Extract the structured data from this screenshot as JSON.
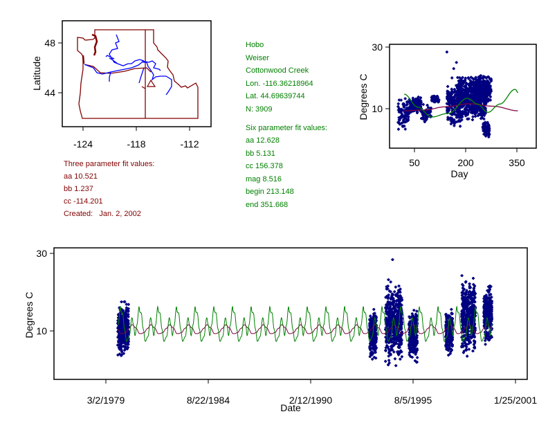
{
  "site": {
    "lines": [
      "Hobo",
      "Weiser",
      "Cottonwood Creek",
      "Lon. -116.36218964",
      "Lat. 44.69639744",
      "N: 3909"
    ],
    "six_title": "Six parameter fit values:",
    "six": [
      "aa 12.628",
      "bb 5.131",
      "cc 156.378",
      "mag 8.516",
      "begin 213.148",
      "end 351.668"
    ]
  },
  "three": {
    "title": "Three parameter fit values:",
    "lines": [
      "aa 10.521",
      "bb 1.237",
      "cc -114.201"
    ],
    "created": "Created:   Jan. 2, 2002"
  },
  "colors": {
    "points": "#000080",
    "three_fit": "#800040",
    "six_fit": "#008000",
    "map_border": "#800000",
    "rivers": "#0000ff"
  },
  "chart_data": [
    {
      "type": "map",
      "ylabel": "Latitude",
      "xticks": [
        "-124",
        "-118",
        "-112"
      ],
      "yticks": [
        "48",
        "44"
      ],
      "site_marker": {
        "lon": -116.362,
        "lat": 44.696,
        "shape": "triangle"
      }
    },
    {
      "type": "scatter",
      "xlabel": "Day",
      "ylabel": "Degrees C",
      "xticks": [
        50,
        200,
        350
      ],
      "yticks": [
        10,
        30
      ],
      "xlim": [
        -50,
        400
      ],
      "ylim": [
        -2.8,
        30.9
      ],
      "clusters": [
        [
          2,
          35,
          3,
          14,
          90
        ],
        [
          35,
          70,
          8,
          14,
          120
        ],
        [
          70,
          100,
          5,
          12,
          60
        ],
        [
          100,
          122,
          11.7,
          14.6,
          50
        ],
        [
          145,
          190,
          4,
          18,
          200
        ],
        [
          175,
          260,
          6,
          21,
          700
        ],
        [
          235,
          275,
          12,
          21,
          200
        ],
        [
          250,
          270,
          0.6,
          6,
          60
        ]
      ],
      "outliers": [
        [
          145,
          28.4
        ],
        [
          165,
          23
        ],
        [
          173,
          25
        ],
        [
          160,
          20
        ],
        [
          240,
          19
        ]
      ],
      "three_fit_curve": [
        [
          20,
          9.3
        ],
        [
          80,
          9.6
        ],
        [
          140,
          10.6
        ],
        [
          210,
          11.6
        ],
        [
          280,
          10.8
        ],
        [
          355,
          9.3
        ]
      ],
      "six_fit_curve": [
        [
          20,
          14.7
        ],
        [
          60,
          10.5
        ],
        [
          100,
          7.3
        ],
        [
          150,
          8.5
        ],
        [
          205,
          13.4
        ],
        [
          235,
          11.5
        ],
        [
          265,
          8.8
        ],
        [
          300,
          11.5
        ],
        [
          345,
          16.3
        ],
        [
          355,
          15
        ]
      ]
    },
    {
      "type": "scatter",
      "xlabel": "Date",
      "ylabel": "Degrees C",
      "xticks": [
        "3/2/1979",
        "8/22/1984",
        "2/12/1990",
        "8/5/1995",
        "1/25/2001"
      ],
      "yticks": [
        10,
        30
      ],
      "ylim": [
        -2.5,
        31.4
      ],
      "xlim": [
        "1977-01-08",
        "2002-02-01"
      ],
      "segments": [
        [
          "1979-10-18",
          "1980-05-22",
          2.5,
          18.6
        ],
        [
          "1993-04-07",
          "1993-08-20",
          1.6,
          16.8
        ],
        [
          "1994-02-12",
          "1995-01-02",
          -0.2,
          24.8
        ],
        [
          "1995-05-17",
          "1995-10-27",
          0.7,
          16.8
        ],
        [
          "1997-05-03",
          "1997-09-15",
          3.4,
          16.8
        ],
        [
          "1998-03-09",
          "1998-12-05",
          1.6,
          25.7
        ],
        [
          "1999-05-16",
          "1999-10-25",
          5.2,
          23
        ]
      ],
      "outliers": [
        [
          "1994-07-01",
          28.4
        ]
      ],
      "fit_range": [
        "1979-11-01",
        "1999-11-01"
      ]
    }
  ]
}
